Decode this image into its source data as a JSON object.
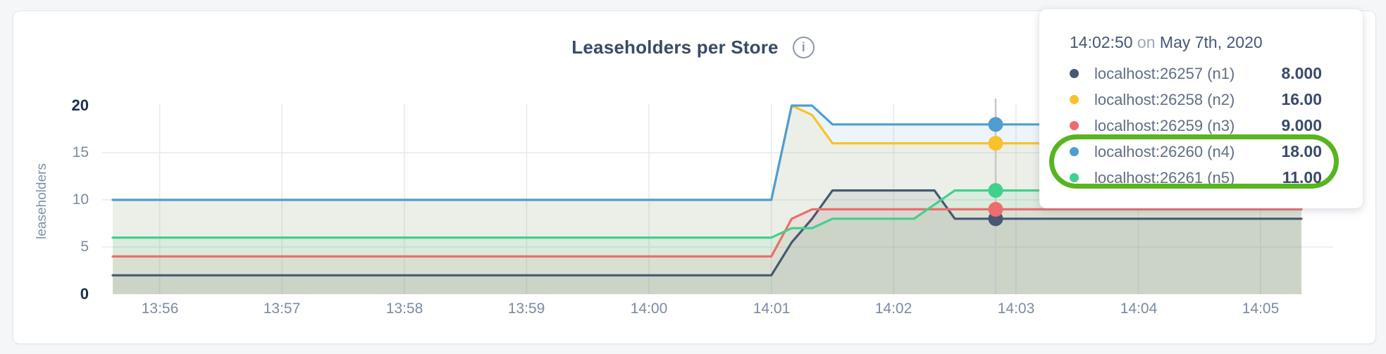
{
  "page": {
    "background": "#f4f6f8",
    "card_background": "#ffffff"
  },
  "header": {
    "title": "Leaseholders per Store",
    "info_icon_glyph": "i"
  },
  "tooltip": {
    "time": "14:02:50",
    "time_connector": "on",
    "date": "May 7th, 2020",
    "rows": [
      {
        "label": "localhost:26257 (n1)",
        "value": "8.000",
        "color": "#475872"
      },
      {
        "label": "localhost:26258 (n2)",
        "value": "16.00",
        "color": "#f8c22d"
      },
      {
        "label": "localhost:26259 (n3)",
        "value": "9.000",
        "color": "#ed6d6d"
      },
      {
        "label": "localhost:26260 (n4)",
        "value": "18.00",
        "color": "#4f9ed2"
      },
      {
        "label": "localhost:26261 (n5)",
        "value": "11.00",
        "color": "#41d08e"
      }
    ]
  },
  "annotation": {
    "shape": "ellipse",
    "color": "#58b41f",
    "highlights": [
      "localhost:26260 (n4)",
      "localhost:26261 (n5)"
    ]
  },
  "chart_data": {
    "type": "area",
    "title": "Leaseholders per Store",
    "xlabel": "",
    "ylabel": "leaseholders",
    "ylim": [
      0,
      20
    ],
    "grid": true,
    "time_start": "13:55:37",
    "time_end": "14:05:20",
    "y_ticks": [
      {
        "value": 0,
        "emphasis": true,
        "grid": false
      },
      {
        "value": 5,
        "emphasis": false,
        "grid": true
      },
      {
        "value": 10,
        "emphasis": false,
        "grid": true
      },
      {
        "value": 15,
        "emphasis": false,
        "grid": true
      },
      {
        "value": 20,
        "emphasis": true,
        "grid": false
      }
    ],
    "x_ticks": [
      {
        "label": "13:56",
        "time": "13:56:00"
      },
      {
        "label": "13:57",
        "time": "13:57:00"
      },
      {
        "label": "13:58",
        "time": "13:58:00"
      },
      {
        "label": "13:59",
        "time": "13:59:00"
      },
      {
        "label": "14:00",
        "time": "14:00:00"
      },
      {
        "label": "14:01",
        "time": "14:01:00"
      },
      {
        "label": "14:02",
        "time": "14:02:00"
      },
      {
        "label": "14:03",
        "time": "14:03:00"
      },
      {
        "label": "14:04",
        "time": "14:04:00"
      },
      {
        "label": "14:05",
        "time": "14:05:00"
      }
    ],
    "hover": {
      "time": "14:02:50"
    },
    "series": [
      {
        "id": "n1",
        "name": "localhost:26257 (n1)",
        "color": "#475872",
        "hover_value": 8,
        "points": [
          [
            "13:55:37",
            2
          ],
          [
            "14:01:00",
            2
          ],
          [
            "14:01:10",
            5.5
          ],
          [
            "14:01:20",
            8
          ],
          [
            "14:01:30",
            11
          ],
          [
            "14:02:20",
            11
          ],
          [
            "14:02:30",
            8
          ],
          [
            "14:05:20",
            8
          ]
        ]
      },
      {
        "id": "n2",
        "name": "localhost:26258 (n2)",
        "color": "#f8c22d",
        "hover_value": 16,
        "points": [
          [
            "13:55:37",
            10
          ],
          [
            "14:01:00",
            10
          ],
          [
            "14:01:10",
            20
          ],
          [
            "14:01:20",
            19
          ],
          [
            "14:01:30",
            16
          ],
          [
            "14:05:20",
            16
          ]
        ]
      },
      {
        "id": "n3",
        "name": "localhost:26259 (n3)",
        "color": "#ed6d6d",
        "hover_value": 9,
        "points": [
          [
            "13:55:37",
            4
          ],
          [
            "14:01:00",
            4
          ],
          [
            "14:01:10",
            8
          ],
          [
            "14:01:20",
            9
          ],
          [
            "14:05:20",
            9
          ]
        ]
      },
      {
        "id": "n4",
        "name": "localhost:26260 (n4)",
        "color": "#4f9ed2",
        "hover_value": 18,
        "points": [
          [
            "13:55:37",
            10
          ],
          [
            "14:01:00",
            10
          ],
          [
            "14:01:10",
            20
          ],
          [
            "14:01:20",
            20
          ],
          [
            "14:01:30",
            18
          ],
          [
            "14:05:20",
            18
          ]
        ]
      },
      {
        "id": "n5",
        "name": "localhost:26261 (n5)",
        "color": "#41d08e",
        "hover_value": 11,
        "points": [
          [
            "13:55:37",
            6
          ],
          [
            "14:01:00",
            6
          ],
          [
            "14:01:10",
            7
          ],
          [
            "14:01:20",
            7
          ],
          [
            "14:01:30",
            8
          ],
          [
            "14:02:10",
            8
          ],
          [
            "14:02:30",
            11
          ],
          [
            "14:05:20",
            11
          ]
        ]
      }
    ]
  }
}
